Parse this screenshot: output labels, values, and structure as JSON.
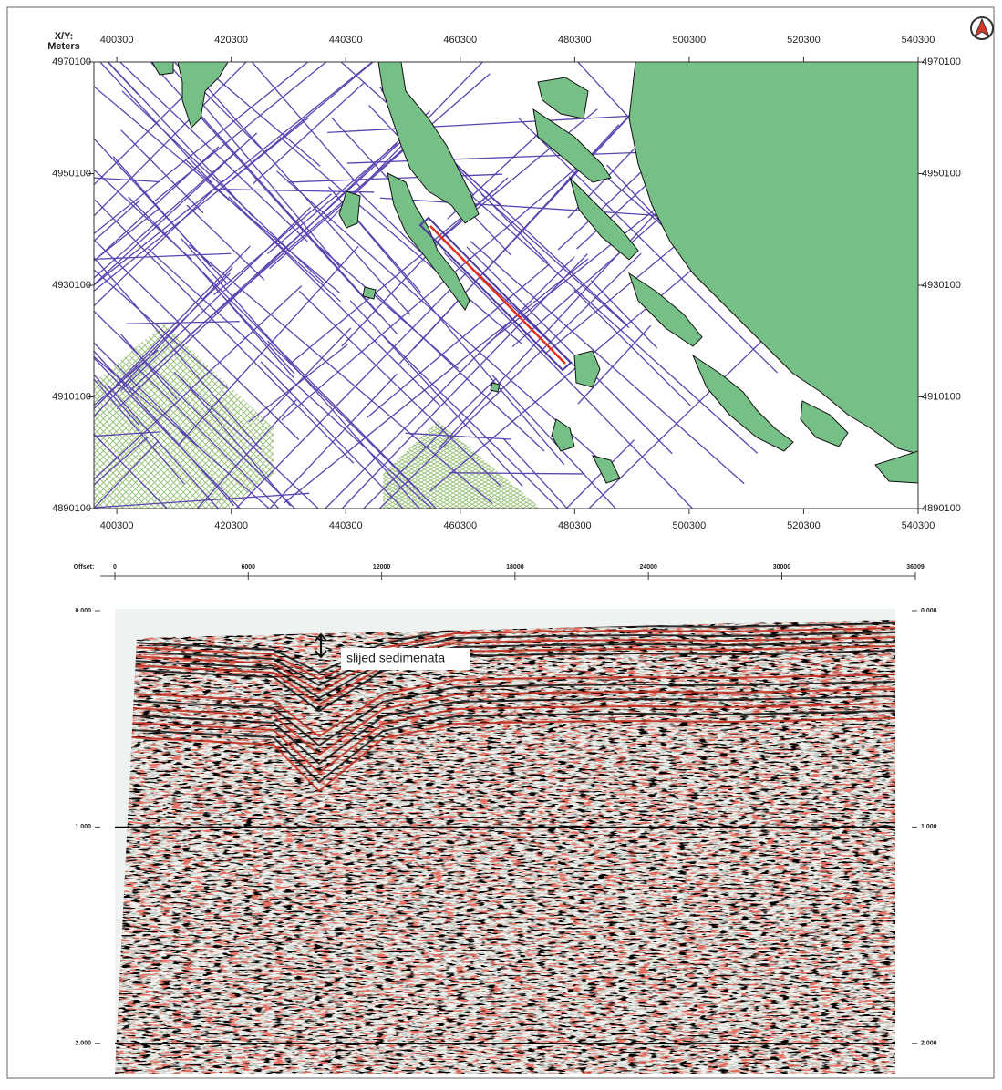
{
  "map": {
    "corner_label_1": "X/Y:",
    "corner_label_2": "Meters",
    "xlim": [
      396300,
      540300
    ],
    "ylim": [
      4890100,
      4970100
    ],
    "xticks": [
      400300,
      420300,
      440300,
      460300,
      480300,
      500300,
      520300,
      540300
    ],
    "yticks": [
      4970100,
      4950100,
      4930100,
      4910100,
      4890100
    ]
  },
  "section": {
    "axis_label": "Offset:",
    "xlim": [
      0,
      36009
    ],
    "ylim": [
      0,
      2.14
    ],
    "xticks": [
      0,
      6000,
      12000,
      18000,
      24000,
      30000,
      36009
    ],
    "yticks": [
      {
        "value": 0,
        "label": "0.000"
      },
      {
        "value": 1,
        "label": "1.000"
      },
      {
        "value": 2,
        "label": "2.000"
      }
    ],
    "annotation": "slijed sedimenata"
  }
}
